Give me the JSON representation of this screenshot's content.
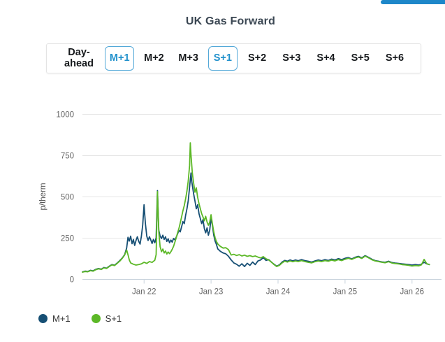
{
  "page": {
    "top_accent_color": "#1d87c9"
  },
  "tabs": {
    "active_text_color": "#2191cc",
    "active_border_color": "#54a9d8",
    "items": [
      {
        "label": "Day-ahead",
        "active": false
      },
      {
        "label": "M+1",
        "active": true
      },
      {
        "label": "M+2",
        "active": false
      },
      {
        "label": "M+3",
        "active": false
      },
      {
        "label": "S+1",
        "active": true
      },
      {
        "label": "S+2",
        "active": false
      },
      {
        "label": "S+3",
        "active": false
      },
      {
        "label": "S+4",
        "active": false
      },
      {
        "label": "S+5",
        "active": false
      },
      {
        "label": "S+6",
        "active": false
      }
    ]
  },
  "chart_data": {
    "type": "line",
    "title": "UK Gas Forward",
    "ylabel": "p/therm",
    "ylim": [
      0,
      1000
    ],
    "yticks": [
      0,
      250,
      500,
      750,
      1000
    ],
    "xlim": [
      21.08,
      26.44
    ],
    "xticks": [
      {
        "value": 22,
        "label": "Jan 22"
      },
      {
        "value": 23,
        "label": "Jan 23"
      },
      {
        "value": 24,
        "label": "Jan 24"
      },
      {
        "value": 25,
        "label": "Jan 25"
      },
      {
        "value": 26,
        "label": "Jan 26"
      }
    ],
    "grid": "horizontal",
    "legend_position": "bottom-left",
    "series": [
      {
        "name": "M+1",
        "color": "#164f74",
        "x": [
          21.08,
          21.12,
          21.16,
          21.2,
          21.24,
          21.28,
          21.32,
          21.36,
          21.4,
          21.44,
          21.48,
          21.52,
          21.56,
          21.6,
          21.64,
          21.68,
          21.71,
          21.74,
          21.76,
          21.78,
          21.8,
          21.82,
          21.84,
          21.86,
          21.88,
          21.9,
          21.92,
          21.94,
          21.96,
          21.98,
          22.0,
          22.02,
          22.04,
          22.06,
          22.08,
          22.1,
          22.12,
          22.14,
          22.16,
          22.18,
          22.2,
          22.22,
          22.24,
          22.26,
          22.28,
          22.3,
          22.32,
          22.34,
          22.36,
          22.38,
          22.4,
          22.42,
          22.44,
          22.46,
          22.48,
          22.5,
          22.52,
          22.54,
          22.56,
          22.58,
          22.6,
          22.62,
          22.64,
          22.66,
          22.68,
          22.7,
          22.71,
          22.72,
          22.74,
          22.76,
          22.78,
          22.8,
          22.82,
          22.84,
          22.86,
          22.88,
          22.9,
          22.92,
          22.94,
          22.96,
          22.98,
          23.0,
          23.02,
          23.04,
          23.06,
          23.08,
          23.1,
          23.14,
          23.18,
          23.22,
          23.26,
          23.3,
          23.34,
          23.38,
          23.42,
          23.46,
          23.5,
          23.54,
          23.58,
          23.62,
          23.66,
          23.7,
          23.74,
          23.78,
          23.82,
          23.86,
          23.9,
          23.94,
          23.98,
          24.02,
          24.06,
          24.1,
          24.14,
          24.18,
          24.22,
          24.26,
          24.3,
          24.35,
          24.4,
          24.45,
          24.5,
          24.55,
          24.6,
          24.65,
          24.7,
          24.75,
          24.8,
          24.85,
          24.9,
          24.95,
          25.0,
          25.05,
          25.1,
          25.15,
          25.2,
          25.25,
          25.3,
          25.35,
          25.4,
          25.45,
          25.5,
          25.55,
          25.6,
          25.65,
          25.7,
          25.75,
          25.8,
          25.85,
          25.9,
          25.95,
          26.0,
          26.05,
          26.1,
          26.14,
          26.18,
          26.22,
          26.26
        ],
        "values": [
          45,
          50,
          48,
          55,
          52,
          61,
          66,
          62,
          72,
          68,
          80,
          90,
          86,
          100,
          115,
          132,
          150,
          190,
          255,
          232,
          262,
          216,
          242,
          206,
          236,
          258,
          230,
          214,
          262,
          330,
          452,
          340,
          262,
          236,
          258,
          240,
          218,
          242,
          222,
          252,
          538,
          298,
          262,
          248,
          268,
          242,
          258,
          230,
          246,
          222,
          238,
          226,
          248,
          240,
          256,
          276,
          298,
          288,
          318,
          350,
          338,
          388,
          428,
          478,
          560,
          645,
          600,
          570,
          518,
          475,
          428,
          452,
          398,
          368,
          338,
          362,
          308,
          282,
          312,
          268,
          298,
          372,
          328,
          268,
          232,
          212,
          185,
          170,
          160,
          155,
          140,
          118,
          100,
          92,
          80,
          95,
          78,
          98,
          85,
          105,
          90,
          112,
          118,
          132,
          115,
          120,
          105,
          92,
          80,
          88,
          105,
          115,
          110,
          118,
          112,
          118,
          113,
          120,
          114,
          110,
          105,
          112,
          118,
          113,
          120,
          115,
          123,
          118,
          126,
          120,
          128,
          132,
          124,
          134,
          140,
          130,
          144,
          134,
          122,
          114,
          110,
          106,
          104,
          110,
          102,
          99,
          97,
          94,
          92,
          90,
          87,
          90,
          87,
          92,
          104,
          94,
          90
        ]
      },
      {
        "name": "S+1",
        "color": "#5cb827",
        "x": [
          21.08,
          21.12,
          21.16,
          21.2,
          21.24,
          21.28,
          21.32,
          21.36,
          21.4,
          21.44,
          21.48,
          21.52,
          21.56,
          21.6,
          21.64,
          21.68,
          21.71,
          21.74,
          21.76,
          21.78,
          21.8,
          21.84,
          21.88,
          21.92,
          21.96,
          22.0,
          22.04,
          22.08,
          22.12,
          22.16,
          22.18,
          22.2,
          22.22,
          22.24,
          22.26,
          22.28,
          22.3,
          22.32,
          22.34,
          22.36,
          22.38,
          22.4,
          22.42,
          22.44,
          22.46,
          22.48,
          22.5,
          22.52,
          22.54,
          22.56,
          22.58,
          22.6,
          22.62,
          22.64,
          22.66,
          22.68,
          22.69,
          22.7,
          22.72,
          22.74,
          22.76,
          22.78,
          22.8,
          22.82,
          22.84,
          22.86,
          22.88,
          22.9,
          22.92,
          22.94,
          22.96,
          22.98,
          23.0,
          23.02,
          23.04,
          23.06,
          23.08,
          23.1,
          23.14,
          23.18,
          23.22,
          23.26,
          23.3,
          23.34,
          23.38,
          23.42,
          23.46,
          23.5,
          23.54,
          23.58,
          23.62,
          23.66,
          23.7,
          23.74,
          23.78,
          23.82,
          23.86,
          23.9,
          23.94,
          23.98,
          24.02,
          24.06,
          24.1,
          24.14,
          24.18,
          24.22,
          24.26,
          24.3,
          24.35,
          24.4,
          24.45,
          24.5,
          24.55,
          24.6,
          24.65,
          24.7,
          24.75,
          24.8,
          24.85,
          24.9,
          24.95,
          25.0,
          25.05,
          25.1,
          25.15,
          25.2,
          25.25,
          25.3,
          25.35,
          25.4,
          25.45,
          25.5,
          25.55,
          25.6,
          25.65,
          25.7,
          25.75,
          25.8,
          25.85,
          25.9,
          25.95,
          26.0,
          26.05,
          26.1,
          26.14,
          26.18,
          26.22,
          26.26
        ],
        "values": [
          44,
          48,
          46,
          53,
          50,
          59,
          64,
          60,
          70,
          66,
          78,
          88,
          84,
          98,
          112,
          130,
          148,
          178,
          150,
          118,
          100,
          92,
          87,
          90,
          94,
          104,
          97,
          108,
          103,
          116,
          150,
          532,
          288,
          198,
          168,
          184,
          160,
          172,
          154,
          166,
          156,
          168,
          182,
          200,
          225,
          252,
          282,
          308,
          342,
          378,
          415,
          448,
          488,
          535,
          598,
          690,
          828,
          755,
          645,
          582,
          528,
          555,
          498,
          458,
          428,
          398,
          378,
          355,
          382,
          348,
          328,
          348,
          392,
          338,
          288,
          252,
          230,
          215,
          200,
          190,
          192,
          180,
          148,
          152,
          145,
          150,
          142,
          147,
          140,
          144,
          138,
          142,
          135,
          130,
          138,
          125,
          118,
          105,
          90,
          78,
          85,
          100,
          110,
          105,
          112,
          107,
          112,
          108,
          114,
          108,
          104,
          100,
          107,
          112,
          108,
          114,
          110,
          117,
          112,
          120,
          114,
          122,
          128,
          121,
          130,
          136,
          127,
          141,
          131,
          119,
          112,
          108,
          104,
          101,
          107,
          99,
          96,
          94,
          90,
          88,
          85,
          81,
          84,
          82,
          88,
          121,
          95,
          90
        ]
      }
    ]
  }
}
